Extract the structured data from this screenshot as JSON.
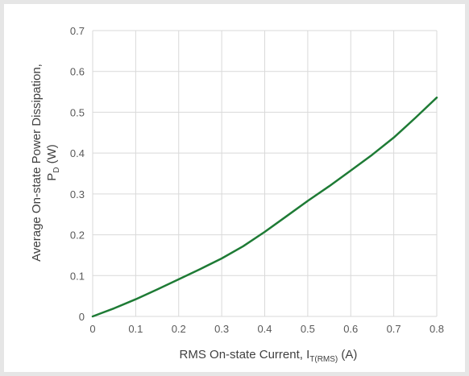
{
  "chart_data": {
    "type": "line",
    "title": "",
    "xlabel": {
      "main": "RMS On-state Current, I",
      "subscript": "T(RMS)",
      "suffix": " (A)"
    },
    "ylabel": {
      "line1": "Average On-state Power Dissipation,",
      "line2_main": "P",
      "line2_subscript": "D",
      "line2_suffix": " (W)"
    },
    "xlim": [
      0,
      0.8
    ],
    "ylim": [
      0,
      0.7
    ],
    "x_ticks": [
      "0",
      "0.1",
      "0.2",
      "0.3",
      "0.4",
      "0.5",
      "0.6",
      "0.7",
      "0.8"
    ],
    "y_ticks": [
      "0",
      "0.1",
      "0.2",
      "0.3",
      "0.4",
      "0.5",
      "0.6",
      "0.7"
    ],
    "grid": true,
    "legend": "none",
    "series": [
      {
        "color": "#1e7b35",
        "x": [
          0,
          0.05,
          0.1,
          0.15,
          0.2,
          0.25,
          0.3,
          0.35,
          0.4,
          0.45,
          0.5,
          0.55,
          0.6,
          0.65,
          0.7,
          0.75,
          0.8
        ],
        "y": [
          0,
          0.02,
          0.042,
          0.066,
          0.091,
          0.116,
          0.142,
          0.172,
          0.207,
          0.245,
          0.283,
          0.319,
          0.357,
          0.396,
          0.438,
          0.486,
          0.536
        ]
      }
    ]
  }
}
